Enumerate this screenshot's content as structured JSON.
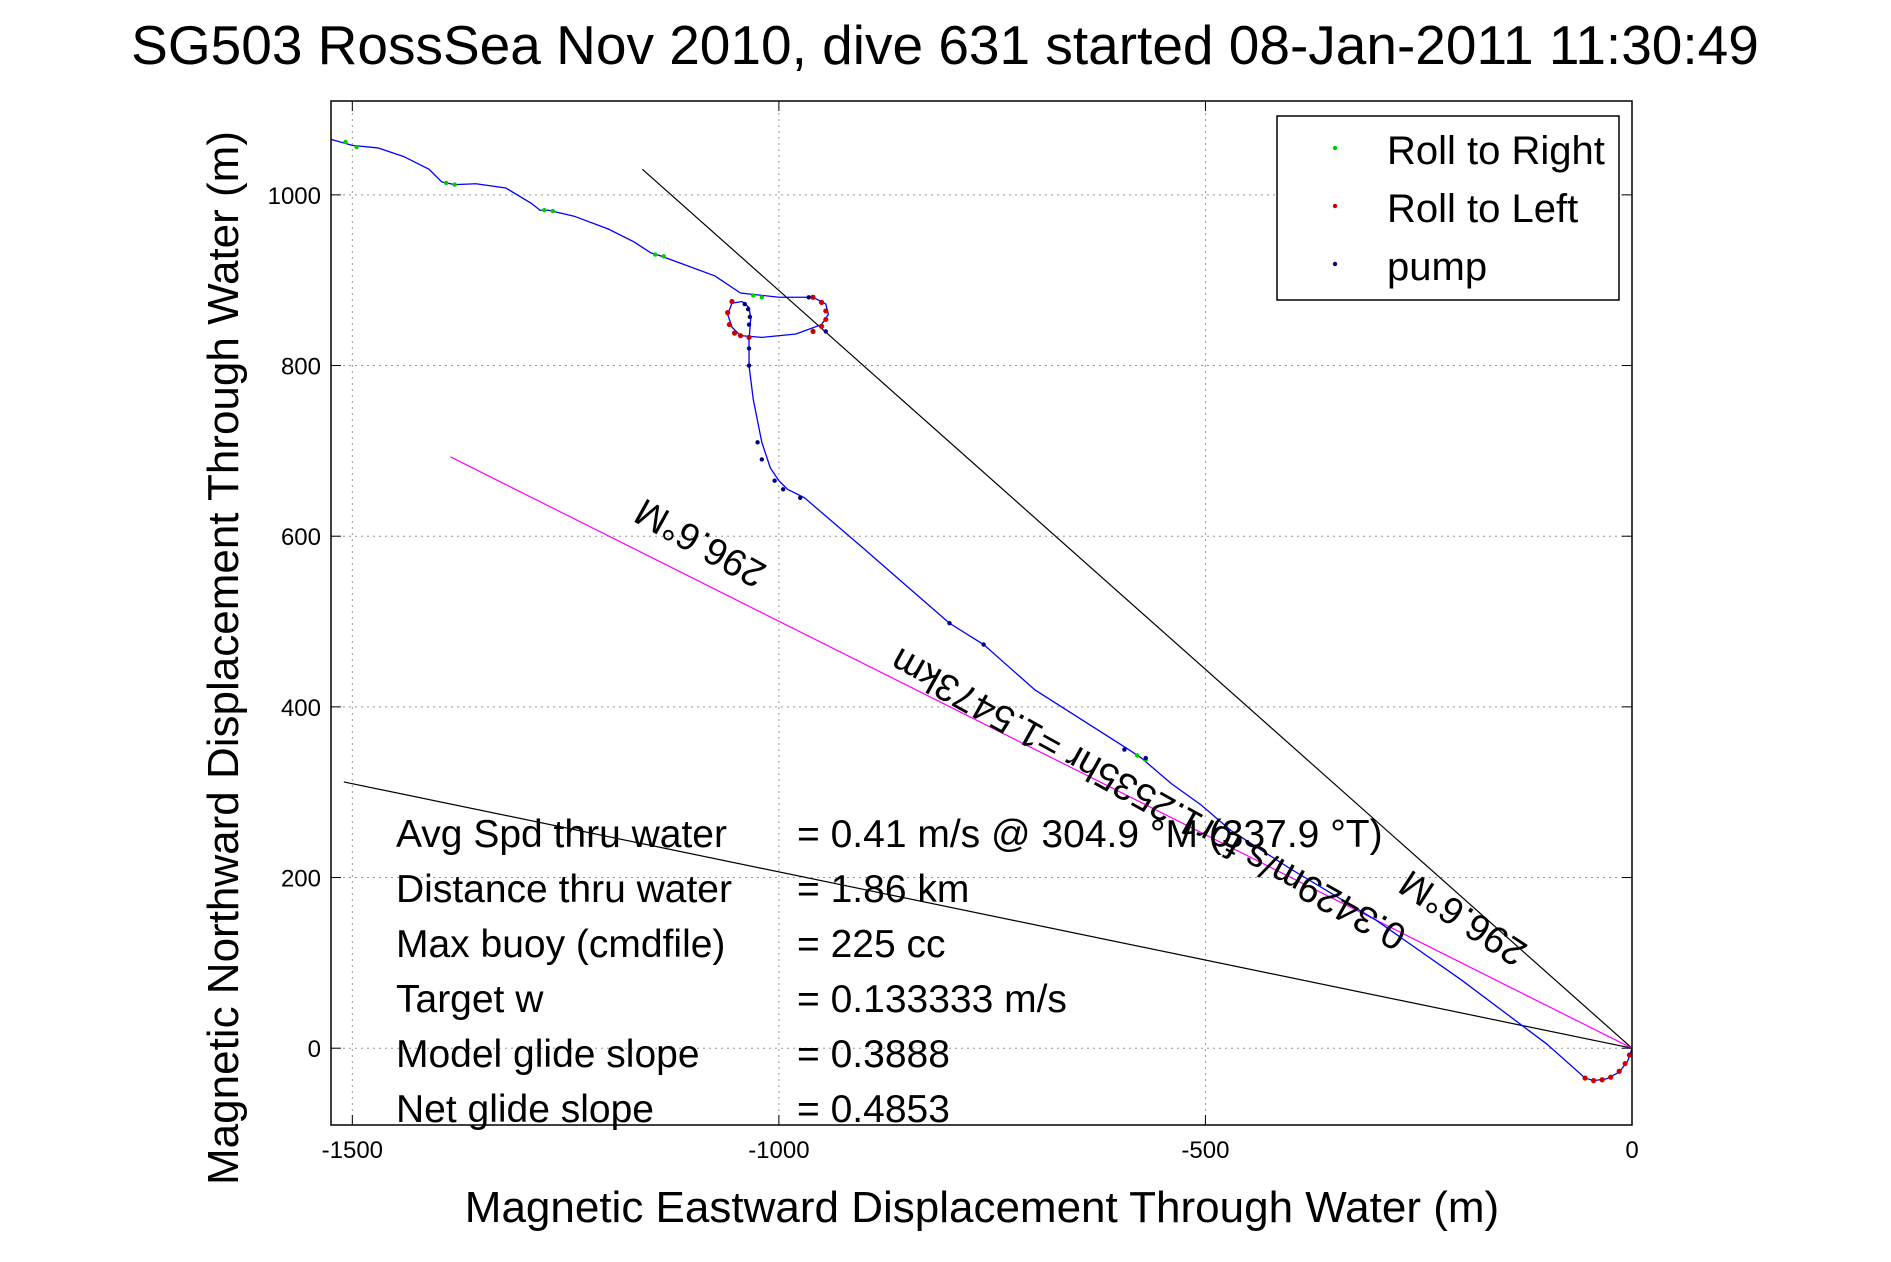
{
  "chart_data": {
    "type": "line",
    "title": "SG503 RossSea Nov 2010, dive 631 started 08-Jan-2011 11:30:49",
    "xlabel": "Magnetic Eastward Displacement Through Water (m)",
    "ylabel": "Magnetic Northward Displacement Through Water (m)",
    "xlim": [
      -1525,
      0
    ],
    "ylim": [
      -90,
      1110
    ],
    "xticks": [
      -1500,
      -1000,
      -500,
      0
    ],
    "xtick_labels": [
      "-1500",
      "-1000",
      "-500",
      "0"
    ],
    "yticks": [
      0,
      200,
      400,
      600,
      800,
      1000
    ],
    "ytick_labels": [
      "0",
      "200",
      "400",
      "600",
      "800",
      "1000"
    ],
    "grid": true,
    "legend_position": "top-right",
    "legend": [
      "Roll to Right",
      "Roll to Left",
      "pump"
    ],
    "series": [
      {
        "name": "track",
        "color": "#0000ff",
        "points": [
          [
            -1525,
            1065
          ],
          [
            -1500,
            1058
          ],
          [
            -1470,
            1055
          ],
          [
            -1440,
            1045
          ],
          [
            -1410,
            1030
          ],
          [
            -1395,
            1015
          ],
          [
            -1380,
            1012
          ],
          [
            -1355,
            1013
          ],
          [
            -1320,
            1008
          ],
          [
            -1290,
            990
          ],
          [
            -1280,
            982
          ],
          [
            -1270,
            982
          ],
          [
            -1240,
            975
          ],
          [
            -1200,
            960
          ],
          [
            -1170,
            945
          ],
          [
            -1150,
            932
          ],
          [
            -1140,
            929
          ],
          [
            -1110,
            918
          ],
          [
            -1075,
            905
          ],
          [
            -1045,
            885
          ],
          [
            -1000,
            880
          ],
          [
            -960,
            880
          ],
          [
            -945,
            872
          ],
          [
            -942,
            860
          ],
          [
            -950,
            848
          ],
          [
            -980,
            837
          ],
          [
            -1020,
            833
          ],
          [
            -1045,
            835
          ],
          [
            -1055,
            845
          ],
          [
            -1060,
            860
          ],
          [
            -1055,
            873
          ],
          [
            -1043,
            875
          ],
          [
            -1035,
            868
          ],
          [
            -1033,
            855
          ],
          [
            -1035,
            830
          ],
          [
            -1035,
            800
          ],
          [
            -1030,
            760
          ],
          [
            -1020,
            710
          ],
          [
            -1010,
            680
          ],
          [
            -1000,
            665
          ],
          [
            -990,
            655
          ],
          [
            -970,
            645
          ],
          [
            -900,
            585
          ],
          [
            -800,
            498
          ],
          [
            -760,
            473
          ],
          [
            -700,
            420
          ],
          [
            -590,
            350
          ],
          [
            -575,
            340
          ],
          [
            -540,
            310
          ],
          [
            -505,
            285
          ],
          [
            -470,
            255
          ],
          [
            -400,
            210
          ],
          [
            -300,
            150
          ],
          [
            -200,
            80
          ],
          [
            -100,
            5
          ],
          [
            -55,
            -35
          ],
          [
            -45,
            -38
          ],
          [
            -30,
            -36
          ],
          [
            -15,
            -28
          ],
          [
            -5,
            -15
          ],
          [
            0,
            0
          ]
        ]
      }
    ],
    "roll_right": [
      [
        -1508,
        1062
      ],
      [
        -1495,
        1056
      ],
      [
        -1390,
        1014
      ],
      [
        -1380,
        1012
      ],
      [
        -1275,
        982
      ],
      [
        -1265,
        981
      ],
      [
        -1145,
        930
      ],
      [
        -1135,
        928
      ],
      [
        -1030,
        882
      ],
      [
        -1020,
        880
      ],
      [
        -580,
        343
      ],
      [
        -570,
        338
      ]
    ],
    "roll_left": [
      [
        -1055,
        875
      ],
      [
        -1060,
        862
      ],
      [
        -1058,
        848
      ],
      [
        -1052,
        838
      ],
      [
        -1045,
        835
      ],
      [
        -1035,
        833
      ],
      [
        -960,
        880
      ],
      [
        -950,
        874
      ],
      [
        -945,
        864
      ],
      [
        -945,
        854
      ],
      [
        -950,
        846
      ],
      [
        -960,
        840
      ],
      [
        -55,
        -35
      ],
      [
        -45,
        -38
      ],
      [
        -35,
        -37
      ],
      [
        -25,
        -34
      ],
      [
        -15,
        -27
      ],
      [
        -8,
        -18
      ],
      [
        -3,
        -8
      ]
    ],
    "pump": [
      [
        -1040,
        872
      ],
      [
        -1036,
        866
      ],
      [
        -1034,
        857
      ],
      [
        -1035,
        848
      ],
      [
        -1035,
        820
      ],
      [
        -1035,
        800
      ],
      [
        -1025,
        710
      ],
      [
        -1020,
        690
      ],
      [
        -1005,
        665
      ],
      [
        -995,
        655
      ],
      [
        -975,
        645
      ],
      [
        -945,
        840
      ],
      [
        -965,
        880
      ],
      [
        -800,
        498
      ],
      [
        -760,
        473
      ],
      [
        -595,
        350
      ],
      [
        -570,
        340
      ]
    ],
    "reference_lines": [
      {
        "name": "heading-line",
        "color": "#000000",
        "points": [
          [
            -1160,
            1030
          ],
          [
            0,
            0
          ]
        ]
      },
      {
        "name": "low-line",
        "color": "#000000",
        "points": [
          [
            -1510,
            312
          ],
          [
            0,
            0
          ]
        ]
      },
      {
        "name": "magenta-line",
        "color": "#ff00ff",
        "points": [
          [
            -1385,
            693
          ],
          [
            0,
            0
          ]
        ]
      }
    ],
    "annotations": [
      {
        "text": "296.6°M",
        "x": -1085,
        "y": 605,
        "angle": 29
      },
      {
        "text": "0.3429m/s for1.2535hr =1.5473km",
        "x": -560,
        "y": 305,
        "angle": 29
      },
      {
        "text": "296.6°M",
        "x": -190,
        "y": 165,
        "angle": 33
      }
    ],
    "stats": [
      {
        "label": "Avg Spd thru water",
        "value": "=  0.41 m/s @ 304.9 °M (337.9 °T)"
      },
      {
        "label": "Distance thru water",
        "value": "=  1.86 km"
      },
      {
        "label": "Max buoy (cmdfile)",
        "value": "= 225 cc"
      },
      {
        "label": "Target w",
        "value": "= 0.133333 m/s"
      },
      {
        "label": "Model glide slope",
        "value": "= 0.3888"
      },
      {
        "label": "Net glide slope",
        "value": "= 0.4853"
      }
    ],
    "colors": {
      "track": "#0000ff",
      "roll_right": "#00cc00",
      "roll_left": "#cc0000",
      "pump": "#000080",
      "magenta": "#ff00ff",
      "grid": "#999999"
    }
  }
}
